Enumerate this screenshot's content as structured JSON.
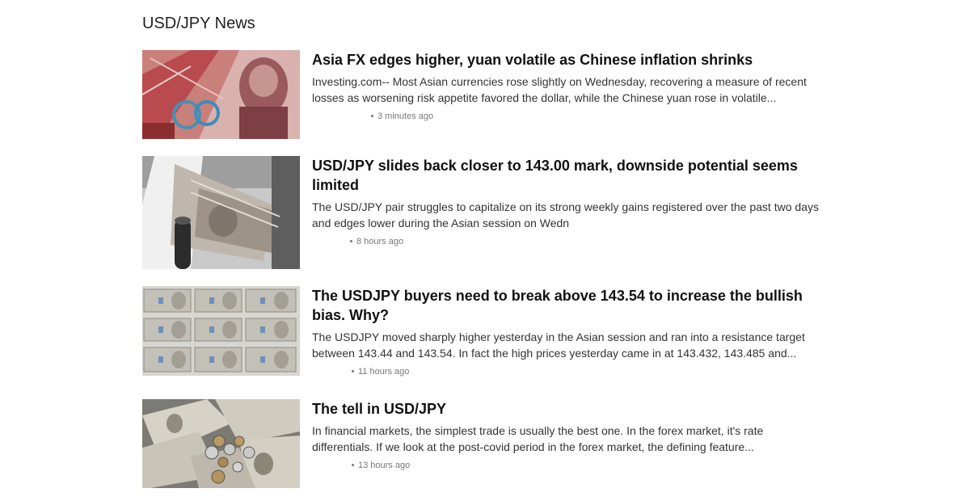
{
  "section": {
    "title": "USD/JPY News"
  },
  "articles": [
    {
      "headline": "Asia FX edges higher, yuan volatile as Chinese inflation shrinks",
      "summary": "Investing.com-- Most Asian currencies rose slightly on Wednesday, recovering a measure of recent losses as worsening risk appetite favored the dollar, while the Chinese yuan rose in volatile...",
      "time": "3 minutes ago",
      "thumbnail": "yuan-banknote-image"
    },
    {
      "headline": "USD/JPY slides back closer to 143.00 mark, downside potential seems limited",
      "summary": "The USD/JPY pair struggles to capitalize on its strong weekly gains registered over the past two days and edges lower during the Asian session on Wedn",
      "time": "8 hours ago",
      "thumbnail": "yen-counting-machine-image"
    },
    {
      "headline": "The USDJPY buyers need to break above 143.54 to increase the bullish bias. Why?",
      "summary": "The USDJPY moved sharply higher yesterday in the Asian session and ran into a resistance target between 143.44 and 143.54. In fact the high prices yesterday came in at 143.432, 143.485 and...",
      "time": "11 hours ago",
      "thumbnail": "yen-bundles-image"
    },
    {
      "headline": "The tell in USD/JPY",
      "summary": "In financial markets, the simplest trade is usually the best one. In the forex market, it's rate differentials. If we look at the post-covid period in the forex market, the defining feature...",
      "time": "13 hours ago",
      "thumbnail": "yen-notes-and-coins-image"
    }
  ]
}
